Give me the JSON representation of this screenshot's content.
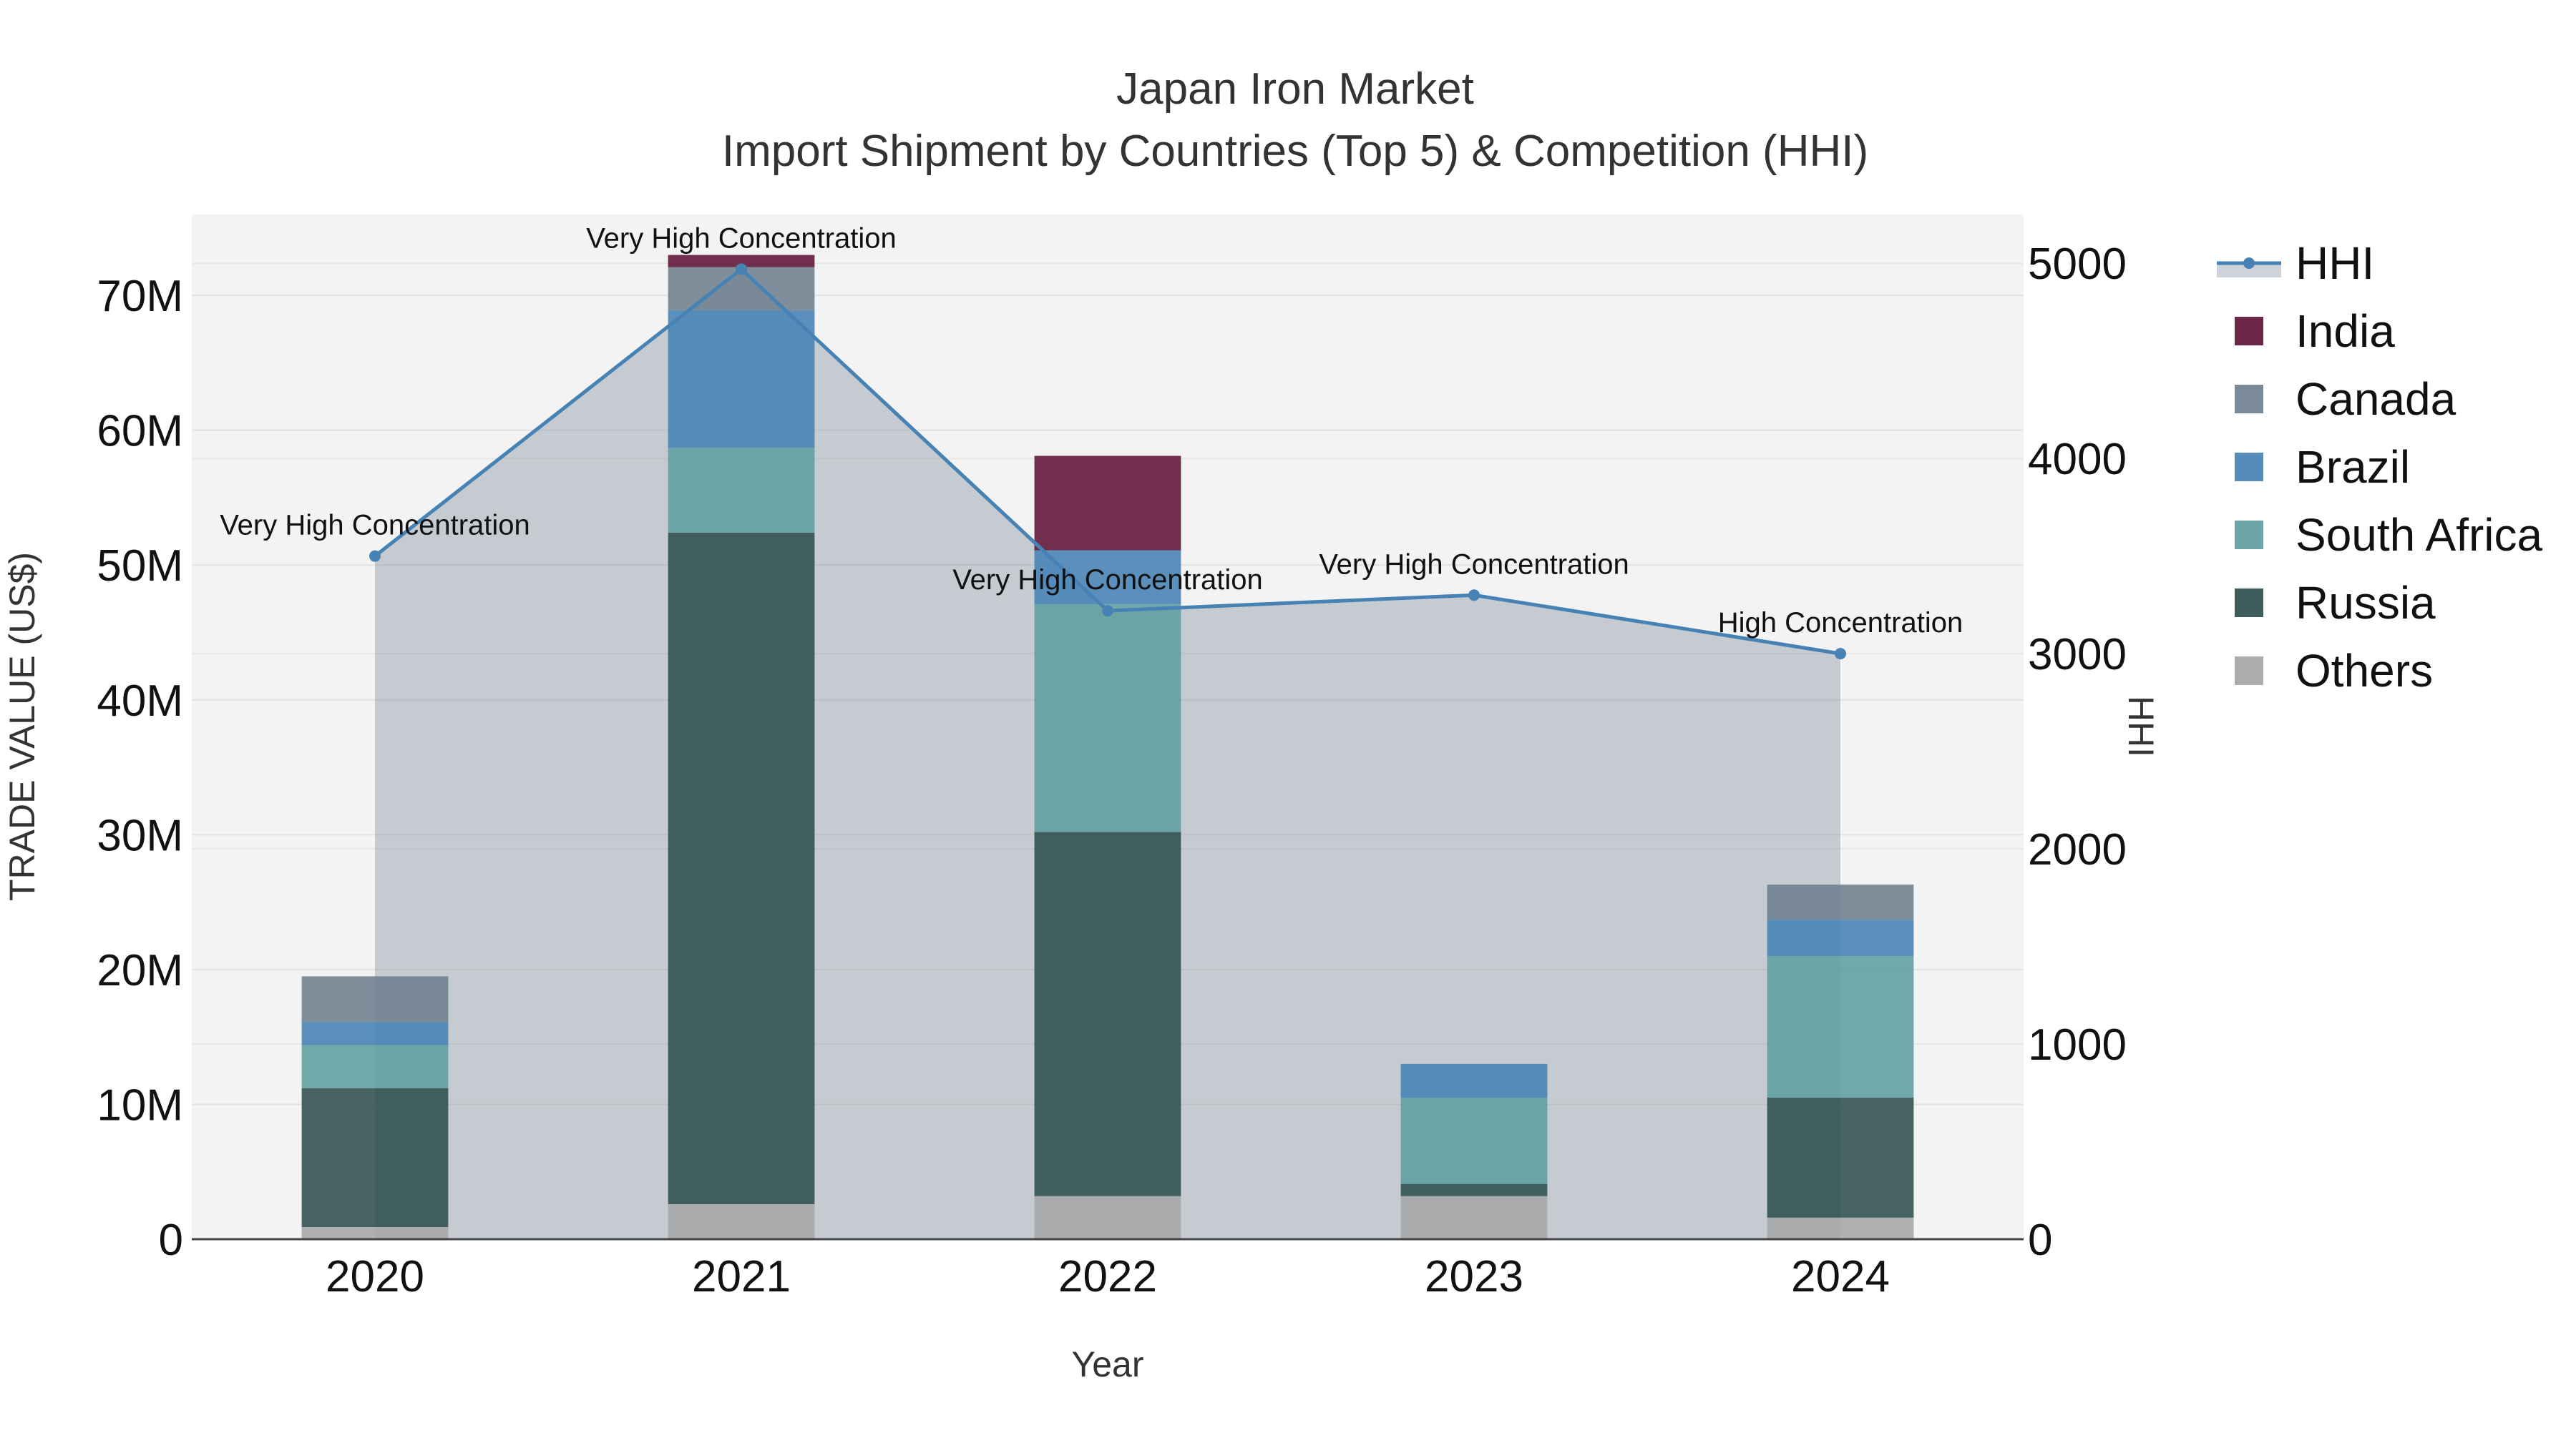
{
  "chart_data": {
    "type": "bar",
    "title": "Japan Iron Market",
    "subtitle": "Import Shipment by Countries (Top 5) & Competition (HHI)",
    "xlabel": "Year",
    "ylabel": "TRADE VALUE (US$)",
    "y2label": "HHI",
    "categories": [
      "2020",
      "2021",
      "2022",
      "2023",
      "2024"
    ],
    "ylim": [
      0,
      76000000
    ],
    "y_ticks": [
      0,
      10000000,
      20000000,
      30000000,
      40000000,
      50000000,
      60000000,
      70000000
    ],
    "y_tick_labels": [
      "0",
      "10M",
      "20M",
      "30M",
      "40M",
      "50M",
      "60M",
      "70M"
    ],
    "y2lim": [
      0,
      5250
    ],
    "y2_ticks": [
      0,
      1000,
      2000,
      3000,
      4000,
      5000
    ],
    "y2_tick_labels": [
      "0",
      "1000",
      "2000",
      "3000",
      "4000",
      "5000"
    ],
    "series": [
      {
        "name": "Others",
        "color": "#a6a6a6",
        "values": [
          900000,
          2600000,
          3200000,
          3200000,
          1600000
        ]
      },
      {
        "name": "Russia",
        "color": "#2f4f4f",
        "values": [
          10300000,
          49800000,
          27000000,
          900000,
          8900000
        ]
      },
      {
        "name": "South Africa",
        "color": "#5f9ea0",
        "values": [
          3200000,
          6300000,
          16900000,
          6400000,
          10500000
        ]
      },
      {
        "name": "Brazil",
        "color": "#4682b4",
        "values": [
          1700000,
          10200000,
          4000000,
          2500000,
          2700000
        ]
      },
      {
        "name": "Canada",
        "color": "#708090",
        "values": [
          3400000,
          3200000,
          0,
          0,
          2600000
        ]
      },
      {
        "name": "India",
        "color": "#5e1236",
        "values": [
          0,
          900000,
          7000000,
          0,
          0
        ]
      }
    ],
    "hhi": {
      "name": "HHI",
      "color": "#4682b4",
      "values": [
        3500,
        4970,
        3220,
        3300,
        3000
      ],
      "labels": [
        "Very High Concentration",
        "Very High Concentration",
        "Very High Concentration",
        "Very High Concentration",
        "High Concentration"
      ]
    },
    "legend": [
      "HHI",
      "India",
      "Canada",
      "Brazil",
      "South Africa",
      "Russia",
      "Others"
    ],
    "legend_position": "right"
  }
}
